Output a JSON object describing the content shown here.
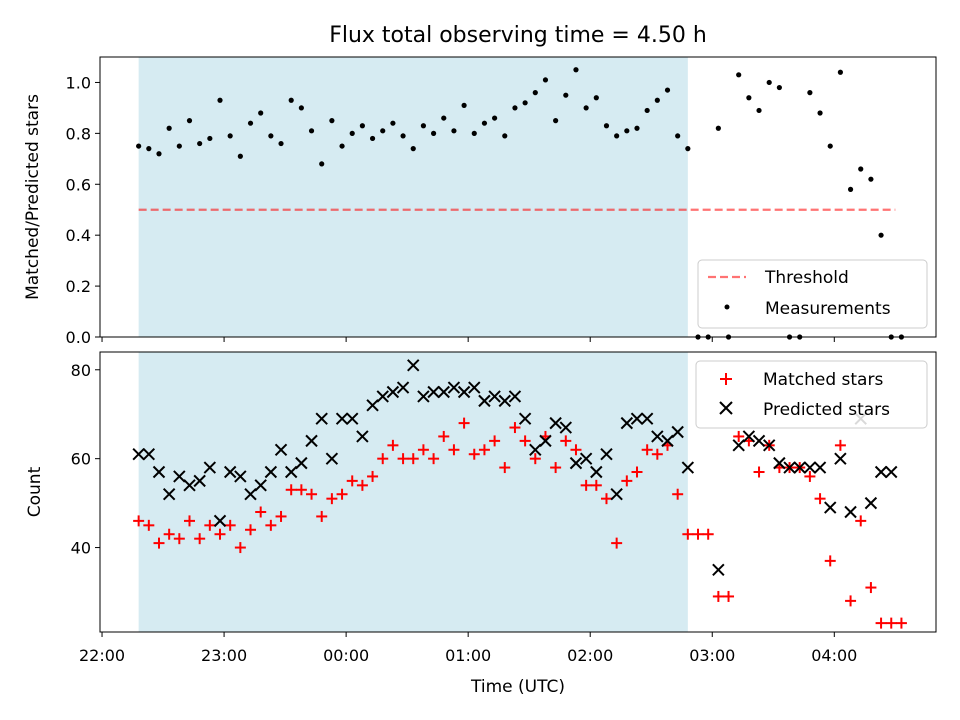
{
  "title": "Flux total observing time = 4.50 h",
  "colors": {
    "shade": "#add8e6",
    "threshold": "#ff0000",
    "measurements": "#000000",
    "matched": "#ff0000",
    "predicted": "#000000"
  },
  "chart_data": [
    {
      "type": "scatter",
      "panel": "top",
      "title": "Flux total observing time = 4.50 h",
      "xlabel": "",
      "ylabel": "Matched/Predicted stars",
      "ylim": [
        0.0,
        1.1
      ],
      "xlim": [
        "21:59",
        "04:50"
      ],
      "yticks": [
        "0.0",
        "0.2",
        "0.4",
        "0.6",
        "0.8",
        "1.0"
      ],
      "shaded_span": [
        "22:18",
        "02:48"
      ],
      "threshold": {
        "name": "Threshold",
        "y": 0.5,
        "x_range": [
          "22:18",
          "04:30"
        ],
        "style": "dashed"
      },
      "legend": {
        "position": "lower-right",
        "entries": [
          "Threshold",
          "Measurements"
        ]
      },
      "series": [
        {
          "name": "Measurements",
          "x": [
            "22:18",
            "22:23",
            "22:28",
            "22:33",
            "22:38",
            "22:43",
            "22:48",
            "22:53",
            "22:58",
            "23:03",
            "23:08",
            "23:13",
            "23:18",
            "23:23",
            "23:28",
            "23:33",
            "23:38",
            "23:43",
            "23:48",
            "23:53",
            "23:58",
            "00:03",
            "00:08",
            "00:13",
            "00:18",
            "00:23",
            "00:28",
            "00:33",
            "00:38",
            "00:43",
            "00:48",
            "00:53",
            "00:58",
            "01:03",
            "01:08",
            "01:13",
            "01:18",
            "01:23",
            "01:28",
            "01:33",
            "01:38",
            "01:43",
            "01:48",
            "01:53",
            "01:58",
            "02:03",
            "02:08",
            "02:13",
            "02:18",
            "02:23",
            "02:28",
            "02:33",
            "02:38",
            "02:43",
            "02:48",
            "02:53",
            "02:58",
            "03:03",
            "03:08",
            "03:13",
            "03:18",
            "03:23",
            "03:28",
            "03:33",
            "03:38",
            "03:43",
            "03:48",
            "03:53",
            "03:58",
            "04:03",
            "04:08",
            "04:13",
            "04:18",
            "04:23",
            "04:28",
            "04:33"
          ],
          "values": [
            0.75,
            0.74,
            0.72,
            0.82,
            0.75,
            0.85,
            0.76,
            0.78,
            0.93,
            0.79,
            0.71,
            0.84,
            0.88,
            0.79,
            0.76,
            0.93,
            0.9,
            0.81,
            0.68,
            0.85,
            0.75,
            0.8,
            0.83,
            0.78,
            0.81,
            0.84,
            0.79,
            0.74,
            0.83,
            0.8,
            0.86,
            0.81,
            0.91,
            0.8,
            0.84,
            0.86,
            0.79,
            0.9,
            0.92,
            0.96,
            1.01,
            0.85,
            0.95,
            1.05,
            0.9,
            0.94,
            0.83,
            0.79,
            0.81,
            0.82,
            0.89,
            0.93,
            0.97,
            0.79,
            0.74,
            0.0,
            0.0,
            0.82,
            0.0,
            1.03,
            0.94,
            0.89,
            1.0,
            0.98,
            0.0,
            0.0,
            0.96,
            0.88,
            0.75,
            1.04,
            0.58,
            0.66,
            0.62,
            0.4,
            0.0,
            0.0
          ]
        }
      ]
    },
    {
      "type": "scatter",
      "panel": "bottom",
      "xlabel": "Time (UTC)",
      "ylabel": "Count",
      "ylim": [
        21,
        84
      ],
      "xlim": [
        "21:59",
        "04:50"
      ],
      "yticks": [
        "40",
        "60",
        "80"
      ],
      "xticks": [
        "22:00",
        "23:00",
        "00:00",
        "01:00",
        "02:00",
        "03:00",
        "04:00"
      ],
      "shaded_span": [
        "22:18",
        "02:48"
      ],
      "legend": {
        "position": "upper-right",
        "entries": [
          "Matched stars",
          "Predicted stars"
        ]
      },
      "series": [
        {
          "name": "Matched stars",
          "marker": "plus",
          "x": [
            "22:18",
            "22:23",
            "22:28",
            "22:33",
            "22:38",
            "22:43",
            "22:48",
            "22:53",
            "22:58",
            "23:03",
            "23:08",
            "23:13",
            "23:18",
            "23:23",
            "23:28",
            "23:33",
            "23:38",
            "23:43",
            "23:48",
            "23:53",
            "23:58",
            "00:03",
            "00:08",
            "00:13",
            "00:18",
            "00:23",
            "00:28",
            "00:33",
            "00:38",
            "00:43",
            "00:48",
            "00:53",
            "00:58",
            "01:03",
            "01:08",
            "01:13",
            "01:18",
            "01:23",
            "01:28",
            "01:33",
            "01:38",
            "01:43",
            "01:48",
            "01:53",
            "01:58",
            "02:03",
            "02:08",
            "02:13",
            "02:18",
            "02:23",
            "02:28",
            "02:33",
            "02:38",
            "02:43",
            "02:48",
            "02:53",
            "02:58",
            "03:03",
            "03:08",
            "03:13",
            "03:18",
            "03:23",
            "03:28",
            "03:33",
            "03:38",
            "03:43",
            "03:48",
            "03:53",
            "03:58",
            "04:03",
            "04:08",
            "04:13",
            "04:18",
            "04:23",
            "04:28",
            "04:33"
          ],
          "values": [
            46,
            45,
            41,
            43,
            42,
            46,
            42,
            45,
            43,
            45,
            40,
            44,
            48,
            45,
            47,
            53,
            53,
            52,
            47,
            51,
            52,
            55,
            54,
            56,
            60,
            63,
            60,
            60,
            62,
            60,
            65,
            62,
            68,
            61,
            62,
            64,
            58,
            67,
            64,
            60,
            65,
            58,
            64,
            62,
            54,
            54,
            51,
            41,
            55,
            57,
            62,
            61,
            63,
            52,
            43,
            43,
            43,
            29,
            29,
            65,
            64,
            57,
            63,
            58,
            58,
            58,
            56,
            51,
            37,
            63,
            28,
            46,
            31,
            23,
            23,
            23
          ]
        },
        {
          "name": "Predicted stars",
          "marker": "x",
          "x": [
            "22:18",
            "22:23",
            "22:28",
            "22:33",
            "22:38",
            "22:43",
            "22:48",
            "22:53",
            "22:58",
            "23:03",
            "23:08",
            "23:13",
            "23:18",
            "23:23",
            "23:28",
            "23:33",
            "23:38",
            "23:43",
            "23:48",
            "23:53",
            "23:58",
            "00:03",
            "00:08",
            "00:13",
            "00:18",
            "00:23",
            "00:28",
            "00:33",
            "00:38",
            "00:43",
            "00:48",
            "00:53",
            "00:58",
            "01:03",
            "01:08",
            "01:13",
            "01:18",
            "01:23",
            "01:28",
            "01:33",
            "01:38",
            "01:43",
            "01:48",
            "01:53",
            "01:58",
            "02:03",
            "02:08",
            "02:13",
            "02:18",
            "02:23",
            "02:28",
            "02:33",
            "02:38",
            "02:43",
            "02:48",
            "03:03",
            "03:13",
            "03:18",
            "03:23",
            "03:28",
            "03:33",
            "03:38",
            "03:43",
            "03:48",
            "03:53",
            "03:58",
            "04:03",
            "04:08",
            "04:13",
            "04:18",
            "04:23",
            "04:28"
          ],
          "values": [
            61,
            61,
            57,
            52,
            56,
            54,
            55,
            58,
            46,
            57,
            56,
            52,
            54,
            57,
            62,
            57,
            59,
            64,
            69,
            60,
            69,
            69,
            65,
            72,
            74,
            75,
            76,
            81,
            74,
            75,
            75,
            76,
            75,
            76,
            73,
            74,
            73,
            74,
            69,
            62,
            64,
            68,
            67,
            59,
            60,
            57,
            61,
            52,
            68,
            69,
            69,
            65,
            64,
            66,
            58,
            35,
            63,
            65,
            64,
            63,
            59,
            58,
            58,
            58,
            58,
            49,
            60,
            48,
            69,
            50,
            57,
            57
          ]
        }
      ]
    }
  ]
}
